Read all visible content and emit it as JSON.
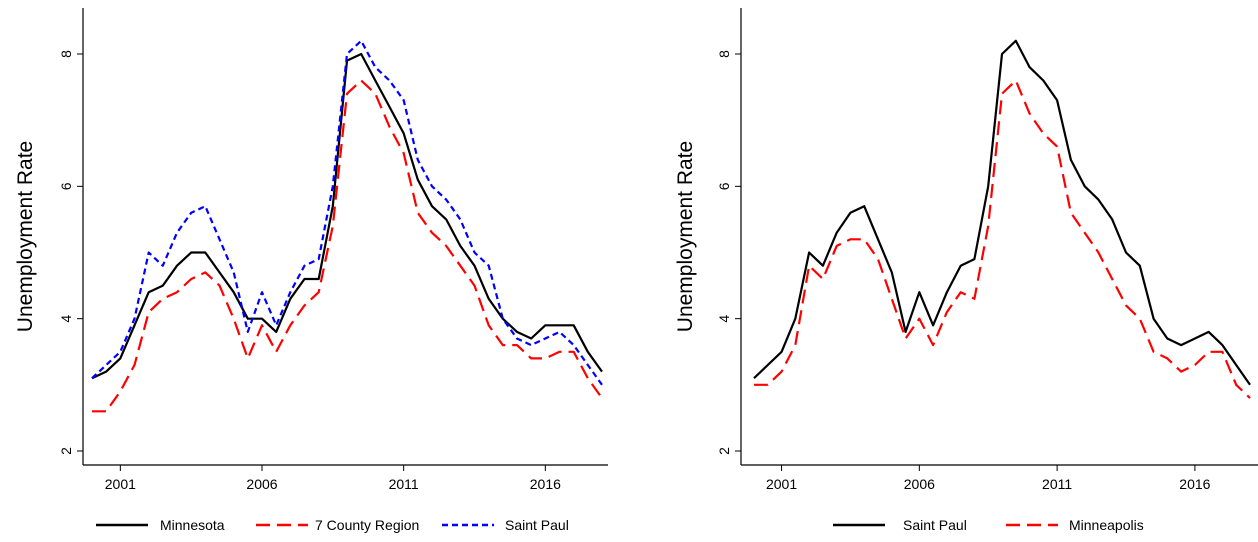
{
  "chart_data": [
    {
      "type": "line",
      "title": "",
      "xlabel": "",
      "ylabel": "Unemployment Rate",
      "xlim": [
        2000.0,
        2018.0
      ],
      "ylim": [
        2,
        8
      ],
      "yticks": [
        2,
        4,
        6,
        8
      ],
      "ytick_labels": [
        "2",
        "4",
        "6",
        "8"
      ],
      "xticks": [
        2001,
        2006,
        2011,
        2016
      ],
      "xtick_labels": [
        "2001",
        "2006",
        "2011",
        "2016"
      ],
      "grid": false,
      "legend": "bottom",
      "series": [
        {
          "name": "Minnesota",
          "color": "#000000",
          "dash": "solid",
          "x": [
            2000.0,
            2000.5,
            2001.0,
            2001.5,
            2002.0,
            2002.5,
            2003.0,
            2003.5,
            2004.0,
            2004.5,
            2005.0,
            2005.5,
            2006.0,
            2006.5,
            2007.0,
            2007.5,
            2008.0,
            2008.5,
            2009.0,
            2009.5,
            2010.0,
            2010.5,
            2011.0,
            2011.5,
            2012.0,
            2012.5,
            2013.0,
            2013.5,
            2014.0,
            2014.5,
            2015.0,
            2015.5,
            2016.0,
            2016.5,
            2017.0,
            2017.5,
            2018.0
          ],
          "y": [
            3.1,
            3.2,
            3.4,
            3.9,
            4.4,
            4.5,
            4.8,
            5.0,
            5.0,
            4.7,
            4.4,
            4.0,
            4.0,
            3.8,
            4.3,
            4.6,
            4.6,
            5.7,
            7.9,
            8.0,
            7.6,
            7.2,
            6.8,
            6.1,
            5.7,
            5.5,
            5.1,
            4.8,
            4.3,
            4.0,
            3.8,
            3.7,
            3.9,
            3.9,
            3.9,
            3.5,
            3.2
          ]
        },
        {
          "name": "7 County Region",
          "color": "#ff0000",
          "dash": "long-dash",
          "x": [
            2000.0,
            2000.5,
            2001.0,
            2001.5,
            2002.0,
            2002.5,
            2003.0,
            2003.5,
            2004.0,
            2004.5,
            2005.0,
            2005.5,
            2006.0,
            2006.5,
            2007.0,
            2007.5,
            2008.0,
            2008.5,
            2009.0,
            2009.5,
            2010.0,
            2010.5,
            2011.0,
            2011.5,
            2012.0,
            2012.5,
            2013.0,
            2013.5,
            2014.0,
            2014.5,
            2015.0,
            2015.5,
            2016.0,
            2016.5,
            2017.0,
            2017.5,
            2018.0
          ],
          "y": [
            2.6,
            2.6,
            2.9,
            3.3,
            4.1,
            4.3,
            4.4,
            4.6,
            4.7,
            4.5,
            4.0,
            3.4,
            3.9,
            3.5,
            3.9,
            4.2,
            4.4,
            5.4,
            7.4,
            7.6,
            7.4,
            6.9,
            6.5,
            5.6,
            5.3,
            5.1,
            4.8,
            4.5,
            3.9,
            3.6,
            3.6,
            3.4,
            3.4,
            3.5,
            3.5,
            3.1,
            2.8
          ]
        },
        {
          "name": "Saint Paul",
          "color": "#0000ff",
          "dash": "short-dash",
          "x": [
            2000.0,
            2000.5,
            2001.0,
            2001.5,
            2002.0,
            2002.5,
            2003.0,
            2003.5,
            2004.0,
            2004.5,
            2005.0,
            2005.5,
            2006.0,
            2006.5,
            2007.0,
            2007.5,
            2008.0,
            2008.5,
            2009.0,
            2009.5,
            2010.0,
            2010.5,
            2011.0,
            2011.5,
            2012.0,
            2012.5,
            2013.0,
            2013.5,
            2014.0,
            2014.5,
            2015.0,
            2015.5,
            2016.0,
            2016.5,
            2017.0,
            2017.5,
            2018.0
          ],
          "y": [
            3.1,
            3.3,
            3.5,
            4.0,
            5.0,
            4.8,
            5.3,
            5.6,
            5.7,
            5.2,
            4.7,
            3.8,
            4.4,
            3.9,
            4.4,
            4.8,
            4.9,
            6.0,
            8.0,
            8.2,
            7.8,
            7.6,
            7.3,
            6.4,
            6.0,
            5.8,
            5.5,
            5.0,
            4.8,
            4.0,
            3.7,
            3.6,
            3.7,
            3.8,
            3.6,
            3.3,
            3.0
          ]
        }
      ]
    },
    {
      "type": "line",
      "title": "",
      "xlabel": "",
      "ylabel": "Unemployment Rate",
      "xlim": [
        2000.0,
        2018.0
      ],
      "ylim": [
        2,
        8
      ],
      "yticks": [
        2,
        4,
        6,
        8
      ],
      "ytick_labels": [
        "2",
        "4",
        "6",
        "8"
      ],
      "xticks": [
        2001,
        2006,
        2011,
        2016
      ],
      "xtick_labels": [
        "2001",
        "2006",
        "2011",
        "2016"
      ],
      "grid": false,
      "legend": "bottom",
      "series": [
        {
          "name": "Saint Paul",
          "color": "#000000",
          "dash": "solid",
          "x": [
            2000.0,
            2000.5,
            2001.0,
            2001.5,
            2002.0,
            2002.5,
            2003.0,
            2003.5,
            2004.0,
            2004.5,
            2005.0,
            2005.5,
            2006.0,
            2006.5,
            2007.0,
            2007.5,
            2008.0,
            2008.5,
            2009.0,
            2009.5,
            2010.0,
            2010.5,
            2011.0,
            2011.5,
            2012.0,
            2012.5,
            2013.0,
            2013.5,
            2014.0,
            2014.5,
            2015.0,
            2015.5,
            2016.0,
            2016.5,
            2017.0,
            2017.5,
            2018.0
          ],
          "y": [
            3.1,
            3.3,
            3.5,
            4.0,
            5.0,
            4.8,
            5.3,
            5.6,
            5.7,
            5.2,
            4.7,
            3.8,
            4.4,
            3.9,
            4.4,
            4.8,
            4.9,
            6.0,
            8.0,
            8.2,
            7.8,
            7.6,
            7.3,
            6.4,
            6.0,
            5.8,
            5.5,
            5.0,
            4.8,
            4.0,
            3.7,
            3.6,
            3.7,
            3.8,
            3.6,
            3.3,
            3.0
          ]
        },
        {
          "name": "Minneapolis",
          "color": "#ff0000",
          "dash": "long-dash",
          "x": [
            2000.0,
            2000.5,
            2001.0,
            2001.5,
            2002.0,
            2002.5,
            2003.0,
            2003.5,
            2004.0,
            2004.5,
            2005.0,
            2005.5,
            2006.0,
            2006.5,
            2007.0,
            2007.5,
            2008.0,
            2008.5,
            2009.0,
            2009.5,
            2010.0,
            2010.5,
            2011.0,
            2011.5,
            2012.0,
            2012.5,
            2013.0,
            2013.5,
            2014.0,
            2014.5,
            2015.0,
            2015.5,
            2016.0,
            2016.5,
            2017.0,
            2017.5,
            2018.0
          ],
          "y": [
            3.0,
            3.0,
            3.2,
            3.6,
            4.8,
            4.6,
            5.1,
            5.2,
            5.2,
            4.9,
            4.3,
            3.7,
            4.0,
            3.6,
            4.1,
            4.4,
            4.3,
            5.4,
            7.4,
            7.6,
            7.1,
            6.8,
            6.6,
            5.6,
            5.3,
            5.0,
            4.6,
            4.2,
            4.0,
            3.5,
            3.4,
            3.2,
            3.3,
            3.5,
            3.5,
            3.0,
            2.8
          ]
        }
      ]
    }
  ]
}
